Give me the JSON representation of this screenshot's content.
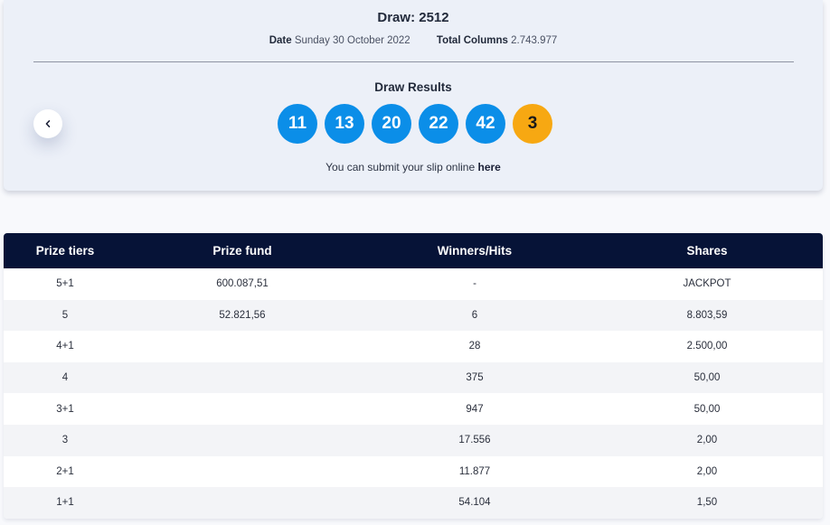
{
  "draw": {
    "title": "Draw: 2512",
    "date_label": "Date",
    "date_value": "Sunday 30 October 2022",
    "columns_label": "Total Columns",
    "columns_value": "2.743.977"
  },
  "results": {
    "title": "Draw Results",
    "main_numbers": [
      "11",
      "13",
      "20",
      "22",
      "42"
    ],
    "bonus_number": "3",
    "colors": {
      "main": "#0b8ee8",
      "bonus": "#f7a812"
    },
    "submit_text": "You can submit your slip online",
    "submit_link": "here",
    "prev_icon": "chevron-left-icon"
  },
  "table": {
    "headers": [
      "Prize tiers",
      "Prize fund",
      "Winners/Hits",
      "Shares"
    ],
    "header_color": "#061337",
    "rows": [
      [
        "5+1",
        "600.087,51",
        "-",
        "JACKPOT"
      ],
      [
        "5",
        "52.821,56",
        "6",
        "8.803,59"
      ],
      [
        "4+1",
        "",
        "28",
        "2.500,00"
      ],
      [
        "4",
        "",
        "375",
        "50,00"
      ],
      [
        "3+1",
        "",
        "947",
        "50,00"
      ],
      [
        "3",
        "",
        "17.556",
        "2,00"
      ],
      [
        "2+1",
        "",
        "11.877",
        "2,00"
      ],
      [
        "1+1",
        "",
        "54.104",
        "1,50"
      ]
    ]
  }
}
